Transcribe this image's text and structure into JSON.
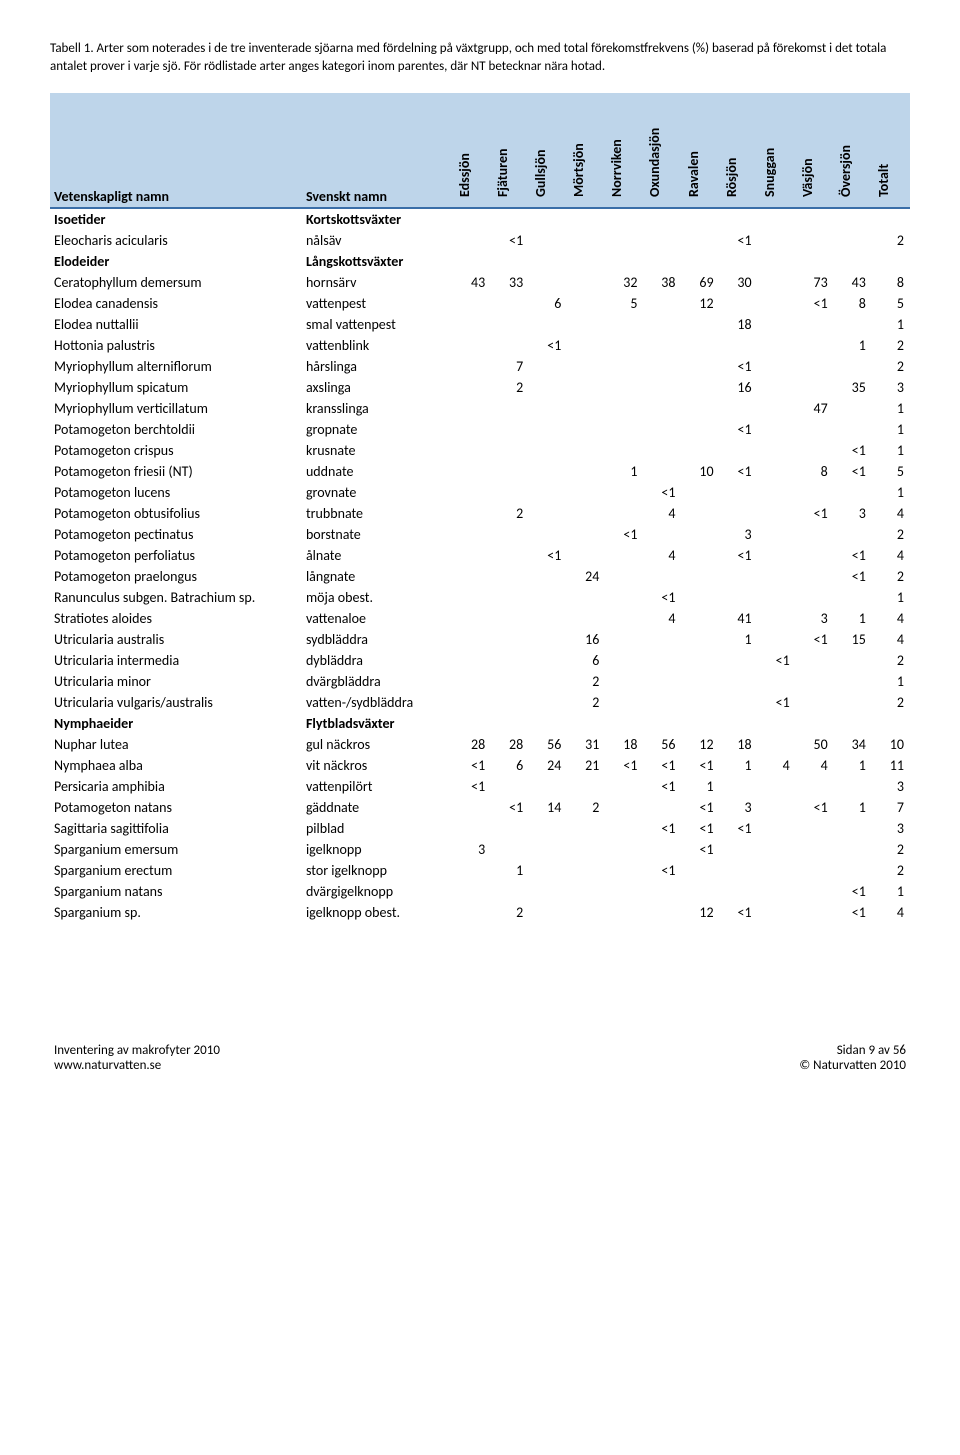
{
  "caption": "Tabell 1. Arter som noterades i de tre inventerade sjöarna med fördelning på växtgrupp, och med total förekomstfrekvens (%) baserad på förekomst i det totala antalet prover i varje sjö. För rödlistade arter anges kategori inom parentes, där NT betecknar nära hotad.",
  "table": {
    "header_bg": "#bed5ea",
    "header_border": "#3a6ea8",
    "columns": {
      "sci": "Vetenskapligt namn",
      "sv": "Svenskt namn",
      "lakes": [
        "Edssjön",
        "Fjäturen",
        "Gullsjön",
        "Mörtsjön",
        "Norrviken",
        "Oxundasjön",
        "Ravalen",
        "Rösjön",
        "Snuggan",
        "Väsjön",
        "Översjön",
        "Totalt"
      ]
    },
    "rows": [
      {
        "grp": true,
        "sci": "Isoetider",
        "sv": "Kortskottsväxter",
        "v": [
          "",
          "",
          "",
          "",
          "",
          "",
          "",
          "",
          "",
          "",
          "",
          ""
        ]
      },
      {
        "sci": "Eleocharis acicularis",
        "sv": "nålsäv",
        "v": [
          "",
          "<1",
          "",
          "",
          "",
          "",
          "",
          "<1",
          "",
          "",
          "",
          "2"
        ]
      },
      {
        "grp": true,
        "sci": "Elodeider",
        "sv": "Långskottsväxter",
        "v": [
          "",
          "",
          "",
          "",
          "",
          "",
          "",
          "",
          "",
          "",
          "",
          ""
        ]
      },
      {
        "sci": "Ceratophyllum demersum",
        "sv": "hornsärv",
        "v": [
          "43",
          "33",
          "",
          "",
          "32",
          "38",
          "69",
          "30",
          "",
          "73",
          "43",
          "8"
        ]
      },
      {
        "sci": "Elodea canadensis",
        "sv": "vattenpest",
        "v": [
          "",
          "",
          "6",
          "",
          "5",
          "",
          "12",
          "",
          "",
          "<1",
          "8",
          "5"
        ]
      },
      {
        "sci": "Elodea nuttallii",
        "sv": "smal vattenpest",
        "v": [
          "",
          "",
          "",
          "",
          "",
          "",
          "",
          "18",
          "",
          "",
          "",
          "1"
        ]
      },
      {
        "sci": "Hottonia palustris",
        "sv": "vattenblink",
        "v": [
          "",
          "",
          "<1",
          "",
          "",
          "",
          "",
          "",
          "",
          "",
          "1",
          "2"
        ]
      },
      {
        "sci": "Myriophyllum alterniflorum",
        "sv": "hårslinga",
        "v": [
          "",
          "7",
          "",
          "",
          "",
          "",
          "",
          "<1",
          "",
          "",
          "",
          "2"
        ]
      },
      {
        "sci": "Myriophyllum spicatum",
        "sv": "axslinga",
        "v": [
          "",
          "2",
          "",
          "",
          "",
          "",
          "",
          "16",
          "",
          "",
          "35",
          "3"
        ]
      },
      {
        "sci": "Myriophyllum verticillatum",
        "sv": "kransslinga",
        "v": [
          "",
          "",
          "",
          "",
          "",
          "",
          "",
          "",
          "",
          "47",
          "",
          "1"
        ]
      },
      {
        "sci": "Potamogeton berchtoldii",
        "sv": "gropnate",
        "v": [
          "",
          "",
          "",
          "",
          "",
          "",
          "",
          "<1",
          "",
          "",
          "",
          "1"
        ]
      },
      {
        "sci": "Potamogeton crispus",
        "sv": "krusnate",
        "v": [
          "",
          "",
          "",
          "",
          "",
          "",
          "",
          "",
          "",
          "",
          "<1",
          "1"
        ]
      },
      {
        "sci": "Potamogeton friesii (NT)",
        "sv": "uddnate",
        "v": [
          "",
          "",
          "",
          "",
          "1",
          "",
          "10",
          "<1",
          "",
          "8",
          "<1",
          "5"
        ]
      },
      {
        "sci": "Potamogeton lucens",
        "sv": "grovnate",
        "v": [
          "",
          "",
          "",
          "",
          "",
          "<1",
          "",
          "",
          "",
          "",
          "",
          "1"
        ]
      },
      {
        "sci": "Potamogeton obtusifolius",
        "sv": "trubbnate",
        "v": [
          "",
          "2",
          "",
          "",
          "",
          "4",
          "",
          "",
          "",
          "<1",
          "3",
          "4"
        ]
      },
      {
        "sci": "Potamogeton pectinatus",
        "sv": "borstnate",
        "v": [
          "",
          "",
          "",
          "",
          "<1",
          "",
          "",
          "3",
          "",
          "",
          "",
          "2"
        ]
      },
      {
        "sci": "Potamogeton perfoliatus",
        "sv": "ålnate",
        "v": [
          "",
          "",
          "<1",
          "",
          "",
          "4",
          "",
          "<1",
          "",
          "",
          "<1",
          "4"
        ]
      },
      {
        "sci": "Potamogeton praelongus",
        "sv": "långnate",
        "v": [
          "",
          "",
          "",
          "24",
          "",
          "",
          "",
          "",
          "",
          "",
          "<1",
          "2"
        ]
      },
      {
        "sci": "Ranunculus subgen. Batrachium sp.",
        "sv": "möja obest.",
        "v": [
          "",
          "",
          "",
          "",
          "",
          "<1",
          "",
          "",
          "",
          "",
          "",
          "1"
        ]
      },
      {
        "sci": "Stratiotes aloides",
        "sv": "vattenaloe",
        "v": [
          "",
          "",
          "",
          "",
          "",
          "4",
          "",
          "41",
          "",
          "3",
          "1",
          "4"
        ]
      },
      {
        "sci": "Utricularia australis",
        "sv": "sydbläddra",
        "v": [
          "",
          "",
          "",
          "16",
          "",
          "",
          "",
          "1",
          "",
          "<1",
          "15",
          "4"
        ]
      },
      {
        "sci": "Utricularia intermedia",
        "sv": "dybläddra",
        "v": [
          "",
          "",
          "",
          "6",
          "",
          "",
          "",
          "",
          "<1",
          "",
          "",
          "2"
        ]
      },
      {
        "sci": "Utricularia minor",
        "sv": "dvärgbläddra",
        "v": [
          "",
          "",
          "",
          "2",
          "",
          "",
          "",
          "",
          "",
          "",
          "",
          "1"
        ]
      },
      {
        "sci": "Utricularia vulgaris/australis",
        "sv": "vatten-/sydbläddra",
        "v": [
          "",
          "",
          "",
          "2",
          "",
          "",
          "",
          "",
          "<1",
          "",
          "",
          "2"
        ]
      },
      {
        "grp": true,
        "sci": "Nymphaeider",
        "sv": "Flytbladsväxter",
        "v": [
          "",
          "",
          "",
          "",
          "",
          "",
          "",
          "",
          "",
          "",
          "",
          ""
        ]
      },
      {
        "sci": "Nuphar lutea",
        "sv": "gul näckros",
        "v": [
          "28",
          "28",
          "56",
          "31",
          "18",
          "56",
          "12",
          "18",
          "",
          "50",
          "34",
          "10"
        ]
      },
      {
        "sci": "Nymphaea alba",
        "sv": "vit näckros",
        "v": [
          "<1",
          "6",
          "24",
          "21",
          "<1",
          "<1",
          "<1",
          "1",
          "4",
          "4",
          "1",
          "11"
        ]
      },
      {
        "sci": "Persicaria amphibia",
        "sv": "vattenpilört",
        "v": [
          "<1",
          "",
          "",
          "",
          "",
          "<1",
          "1",
          "",
          "",
          "",
          "",
          "3"
        ]
      },
      {
        "sci": "Potamogeton natans",
        "sv": "gäddnate",
        "v": [
          "",
          "<1",
          "14",
          "2",
          "",
          "",
          "<1",
          "3",
          "",
          "<1",
          "1",
          "7"
        ]
      },
      {
        "sci": "Sagittaria sagittifolia",
        "sv": "pilblad",
        "v": [
          "",
          "",
          "",
          "",
          "",
          "<1",
          "<1",
          "<1",
          "",
          "",
          "",
          "3"
        ]
      },
      {
        "sci": "Sparganium emersum",
        "sv": "igelknopp",
        "v": [
          "3",
          "",
          "",
          "",
          "",
          "",
          "<1",
          "",
          "",
          "",
          "",
          "2"
        ]
      },
      {
        "sci": "Sparganium erectum",
        "sv": "stor igelknopp",
        "v": [
          "",
          "1",
          "",
          "",
          "",
          "<1",
          "",
          "",
          "",
          "",
          "",
          "2"
        ]
      },
      {
        "sci": "Sparganium natans",
        "sv": "dvärgigelknopp",
        "v": [
          "",
          "",
          "",
          "",
          "",
          "",
          "",
          "",
          "",
          "",
          "<1",
          "1"
        ]
      },
      {
        "sci": "Sparganium sp.",
        "sv": "igelknopp obest.",
        "v": [
          "",
          "2",
          "",
          "",
          "",
          "",
          "12",
          "<1",
          "",
          "",
          "<1",
          "4"
        ]
      }
    ]
  },
  "footer": {
    "left1": "Inventering av makrofyter 2010",
    "left2": "www.naturvatten.se",
    "right1": "Sidan 9 av 56",
    "right2": "© Naturvatten 2010"
  }
}
